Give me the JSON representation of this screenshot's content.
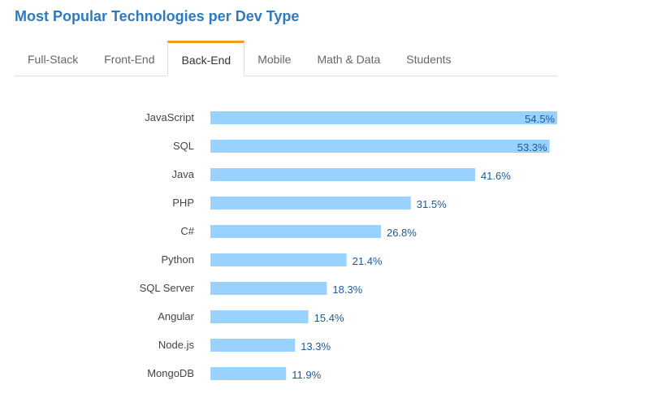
{
  "title": "Most Popular Technologies per Dev Type",
  "tabs": [
    {
      "label": "Full-Stack",
      "active": false
    },
    {
      "label": "Front-End",
      "active": false
    },
    {
      "label": "Back-End",
      "active": true
    },
    {
      "label": "Mobile",
      "active": false
    },
    {
      "label": "Math & Data",
      "active": false
    },
    {
      "label": "Students",
      "active": false
    }
  ],
  "colors": {
    "bar": "#99d1ff",
    "accent": "#f49b1a",
    "title": "#2f7abf",
    "value_label": "#1d5a96"
  },
  "chart_data": {
    "type": "bar",
    "orientation": "horizontal",
    "categories": [
      "JavaScript",
      "SQL",
      "Java",
      "PHP",
      "C#",
      "Python",
      "SQL Server",
      "Angular",
      "Node.js",
      "MongoDB"
    ],
    "values": [
      54.5,
      53.3,
      41.6,
      31.5,
      26.8,
      21.4,
      18.3,
      15.4,
      13.3,
      11.9
    ],
    "value_labels": [
      "54.5%",
      "53.3%",
      "41.6%",
      "31.5%",
      "26.8%",
      "21.4%",
      "18.3%",
      "15.4%",
      "13.3%",
      "11.9%"
    ],
    "xlim": [
      0,
      54.5
    ],
    "grid": false
  }
}
